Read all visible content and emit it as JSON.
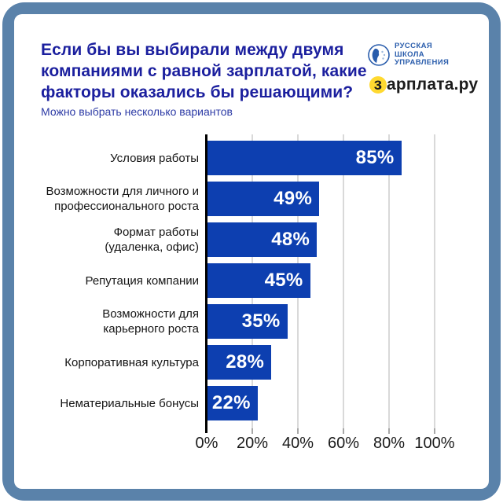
{
  "frame": {
    "color": "#5a82aa"
  },
  "header": {
    "title": "Если бы вы выбирали между двумя компаниями с равной зарплатой, какие факторы оказались бы решающими?",
    "title_lines": [
      "Если бы вы выбирали между двумя",
      "компаниями с равной зарплатой, какие",
      "факторы оказались бы решающими?"
    ],
    "subtitle": "Можно выбрать несколько вариантов",
    "title_color": "#1b1f9e"
  },
  "logos": {
    "rshu": {
      "lines": [
        "РУССКАЯ",
        "ШКОЛА",
        "УПРАВЛЕНИЯ"
      ],
      "color": "#2a5dac",
      "icon": "profile-portrait-in-circle"
    },
    "zarplata": {
      "text": "зарплата.ру",
      "highlight_letter": "з",
      "rest": "арплата.ру",
      "highlight_color": "#ffd930",
      "text_color": "#1c1c1c"
    }
  },
  "chart_data": {
    "type": "bar",
    "orientation": "horizontal",
    "title": "Если бы вы выбирали между двумя компаниями с равной зарплатой, какие факторы оказались бы решающими?",
    "subtitle": "Можно выбрать несколько вариантов",
    "categories": [
      "Условия работы",
      "Возможности для личного и профессионального роста",
      "Формат работы (удаленка, офис)",
      "Репутация компании",
      "Возможности для карьерного роста",
      "Корпоративная культура",
      "Нематериальные бонусы"
    ],
    "category_lines": [
      [
        "Условия работы"
      ],
      [
        "Возможности для личного и",
        "профессионального роста"
      ],
      [
        "Формат работы",
        "(удаленка, офис)"
      ],
      [
        "Репутация компании"
      ],
      [
        "Возможности для",
        "карьерного роста"
      ],
      [
        "Корпоративная культура"
      ],
      [
        "Нематериальные бонусы"
      ]
    ],
    "values": [
      85,
      49,
      48,
      45,
      35,
      28,
      22
    ],
    "value_labels": [
      "85%",
      "49%",
      "48%",
      "45%",
      "35%",
      "28%",
      "22%"
    ],
    "x_tick_values": [
      0,
      20,
      40,
      60,
      80,
      100
    ],
    "x_tick_labels": [
      "0%",
      "20%",
      "40%",
      "60%",
      "80%",
      "100%"
    ],
    "xlim": [
      0,
      100
    ],
    "bar_color": "#0d3fb0",
    "value_label_color": "#ffffff",
    "grid": true,
    "gridline_color": "#d9d9d9"
  }
}
